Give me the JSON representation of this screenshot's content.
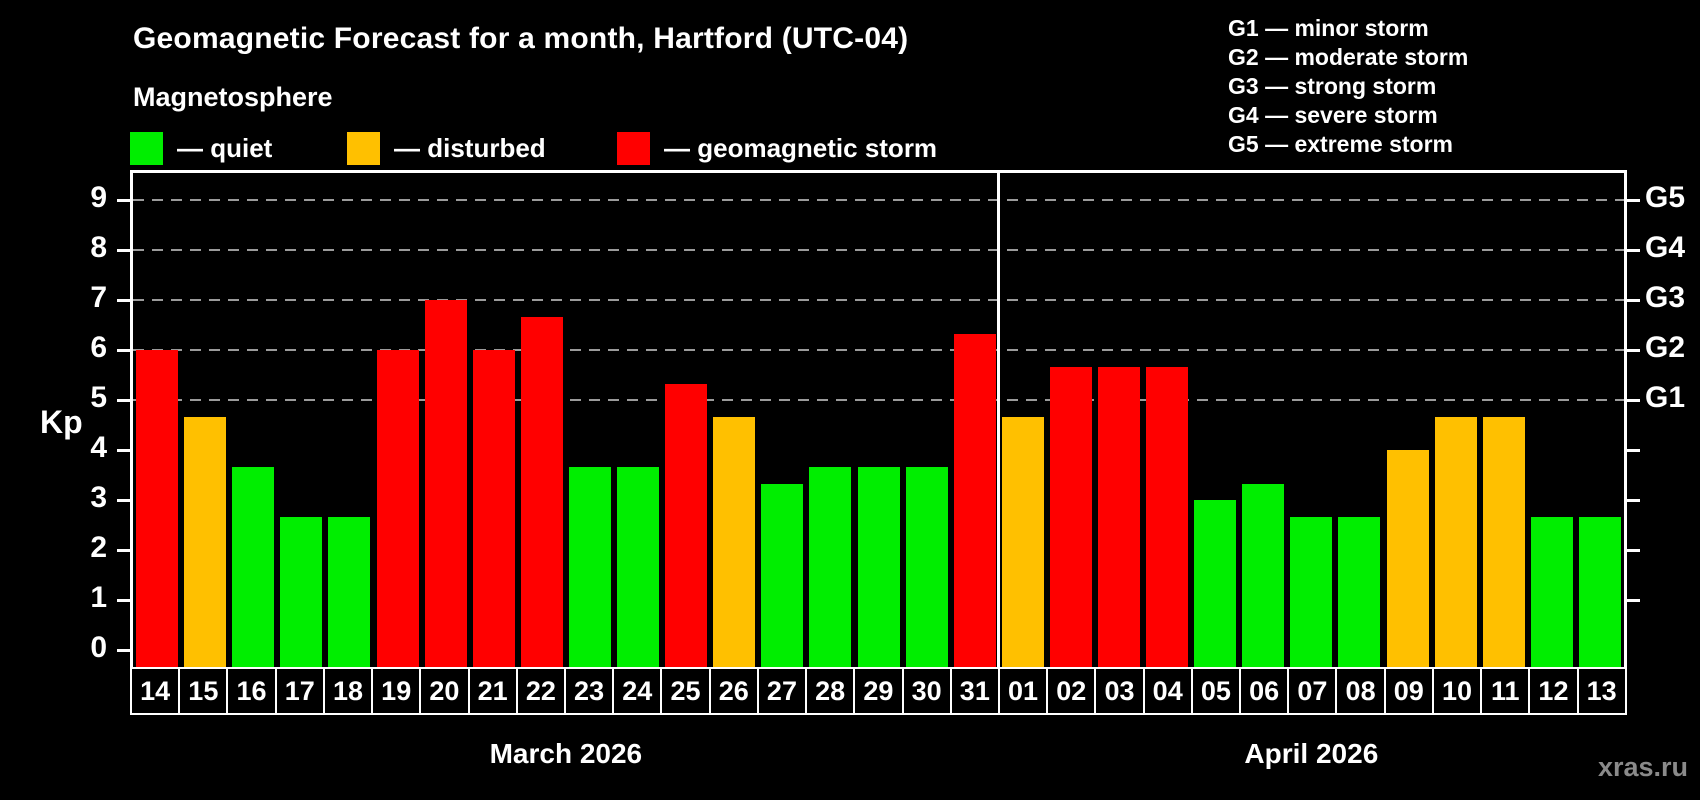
{
  "title": "Geomagnetic Forecast for a month, Hartford (UTC-04)",
  "subtitle": "Magnetosphere",
  "bar_legend": [
    {
      "key": "quiet",
      "label": "— quiet"
    },
    {
      "key": "disturbed",
      "label": "— disturbed"
    },
    {
      "key": "storm",
      "label": "— geomagnetic storm"
    }
  ],
  "g_legend": [
    "G1 — minor storm",
    "G2 — moderate storm",
    "G3 — strong storm",
    "G4 — severe storm",
    "G5 — extreme storm"
  ],
  "y_axis": {
    "label": "Kp",
    "ticks": [
      0,
      1,
      2,
      3,
      4,
      5,
      6,
      7,
      8,
      9
    ]
  },
  "right_axis": {
    "labels": [
      {
        "kp": 5,
        "text": "G1"
      },
      {
        "kp": 6,
        "text": "G2"
      },
      {
        "kp": 7,
        "text": "G3"
      },
      {
        "kp": 8,
        "text": "G4"
      },
      {
        "kp": 9,
        "text": "G5"
      }
    ]
  },
  "watermark": "xras.ru",
  "colors": {
    "quiet": "#00ee00",
    "disturbed": "#ffc000",
    "storm": "#ff0000",
    "grid": "#9b9b9b",
    "frame": "#ffffff",
    "background": "#000000"
  },
  "chart_data": {
    "type": "bar",
    "title": "Geomagnetic Forecast for a month, Hartford (UTC-04)",
    "subtitle": "Magnetosphere",
    "ylabel": "Kp",
    "ylim": [
      0,
      9.5
    ],
    "grid": "horizontal dashed lines at Kp 5..9 labeled G1..G5 on right axis",
    "legend_position": "top",
    "months": [
      {
        "name": "March 2026",
        "days": [
          "14",
          "15",
          "16",
          "17",
          "18",
          "19",
          "20",
          "21",
          "22",
          "23",
          "24",
          "25",
          "26",
          "27",
          "28",
          "29",
          "30",
          "31"
        ],
        "values": [
          6,
          4.67,
          3.67,
          2.67,
          2.67,
          6,
          7,
          6,
          6.67,
          3.67,
          3.67,
          5.33,
          4.67,
          3.33,
          3.67,
          3.67,
          3.67,
          6.33
        ],
        "status": [
          "storm",
          "disturbed",
          "quiet",
          "quiet",
          "quiet",
          "storm",
          "storm",
          "storm",
          "storm",
          "quiet",
          "quiet",
          "storm",
          "disturbed",
          "quiet",
          "quiet",
          "quiet",
          "quiet",
          "storm"
        ]
      },
      {
        "name": "April 2026",
        "days": [
          "01",
          "02",
          "03",
          "04",
          "05",
          "06",
          "07",
          "08",
          "09",
          "10",
          "11",
          "12",
          "13"
        ],
        "values": [
          4.67,
          5.67,
          5.67,
          5.67,
          3,
          3.33,
          2.67,
          2.67,
          4,
          4.67,
          4.67,
          2.67,
          2.67
        ],
        "status": [
          "disturbed",
          "storm",
          "storm",
          "storm",
          "quiet",
          "quiet",
          "quiet",
          "quiet",
          "disturbed",
          "disturbed",
          "disturbed",
          "quiet",
          "quiet"
        ]
      }
    ]
  }
}
